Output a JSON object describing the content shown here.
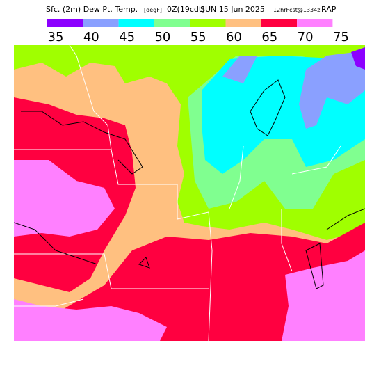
{
  "header": {
    "parts": [
      "Sfc. (2m) Dew Pt. Temp.",
      "[degF]",
      "0Z(19cdt)",
      "SUN 15 Jun 2025",
      "12hrFcst@1334z",
      "RAP"
    ]
  },
  "legend": {
    "colors": [
      "#8c00ff",
      "#8aa0ff",
      "#00ffff",
      "#80ff90",
      "#a0ff00",
      "#ffc080",
      "#ff0040",
      "#ff80ff"
    ],
    "labels": [
      35,
      40,
      45,
      50,
      55,
      60,
      65,
      70,
      75
    ]
  }
}
